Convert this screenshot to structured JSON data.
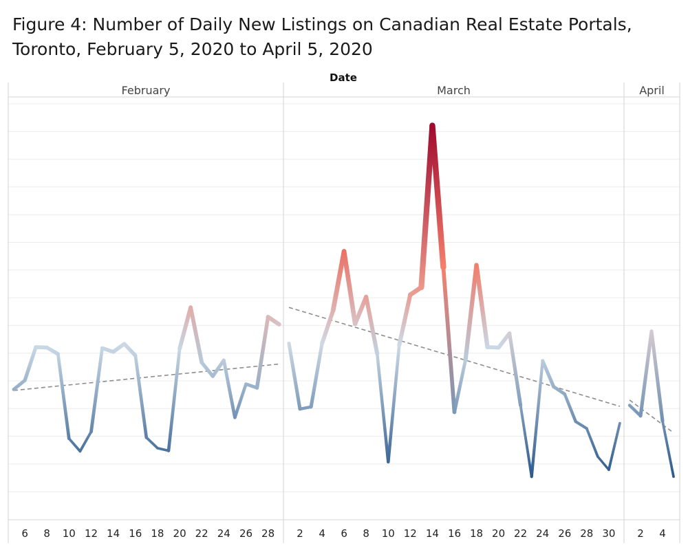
{
  "title": {
    "line1": "Figure 4: Number of Daily New Listings on Canadian Real Estate Portals,",
    "line2": "Toronto, February 5, 2020 to April 5, 2020"
  },
  "chart_data": {
    "type": "line",
    "column_axis_title": "Date",
    "xlabel": "",
    "ylabel": "",
    "y_tick_labels_shown": false,
    "grid": true,
    "color_encoding": "diverging blue-grey-red by value",
    "trend_lines": true,
    "panels": [
      {
        "month": "February",
        "tick_labels": [
          "6",
          "8",
          "10",
          "12",
          "14",
          "16",
          "18",
          "20",
          "22",
          "24",
          "26",
          "28"
        ],
        "x": [
          5,
          6,
          7,
          8,
          9,
          10,
          11,
          12,
          13,
          14,
          15,
          16,
          17,
          18,
          19,
          20,
          21,
          22,
          23,
          24,
          25,
          26,
          27,
          28,
          29
        ],
        "values": [
          535,
          552,
          615,
          614,
          602,
          442,
          418,
          455,
          613,
          606,
          621,
          599,
          444,
          424,
          419,
          612,
          690,
          586,
          560,
          590,
          482,
          545,
          538,
          672,
          658
        ],
        "trend": [
          533,
          583
        ]
      },
      {
        "month": "March",
        "tick_labels": [
          "2",
          "4",
          "6",
          "8",
          "10",
          "12",
          "14",
          "16",
          "18",
          "20",
          "22",
          "24",
          "26",
          "28",
          "30"
        ],
        "x": [
          1,
          2,
          3,
          4,
          5,
          6,
          7,
          8,
          9,
          10,
          11,
          12,
          13,
          14,
          15,
          16,
          17,
          18,
          19,
          20,
          21,
          22,
          23,
          24,
          25,
          26,
          27,
          28,
          29,
          30,
          31
        ],
        "values": [
          622,
          498,
          502,
          622,
          684,
          796,
          659,
          710,
          603,
          398,
          619,
          714,
          728,
          1034,
          766,
          492,
          590,
          770,
          615,
          614,
          641,
          505,
          370,
          589,
          540,
          526,
          474,
          461,
          408,
          383,
          471
        ],
        "trend": [
          690,
          503
        ]
      },
      {
        "month": "April",
        "tick_labels": [
          "2",
          "4"
        ],
        "x": [
          1,
          2,
          3,
          4,
          5
        ],
        "values": [
          505,
          485,
          645,
          475,
          370
        ],
        "trend": [
          515,
          453
        ]
      }
    ]
  }
}
